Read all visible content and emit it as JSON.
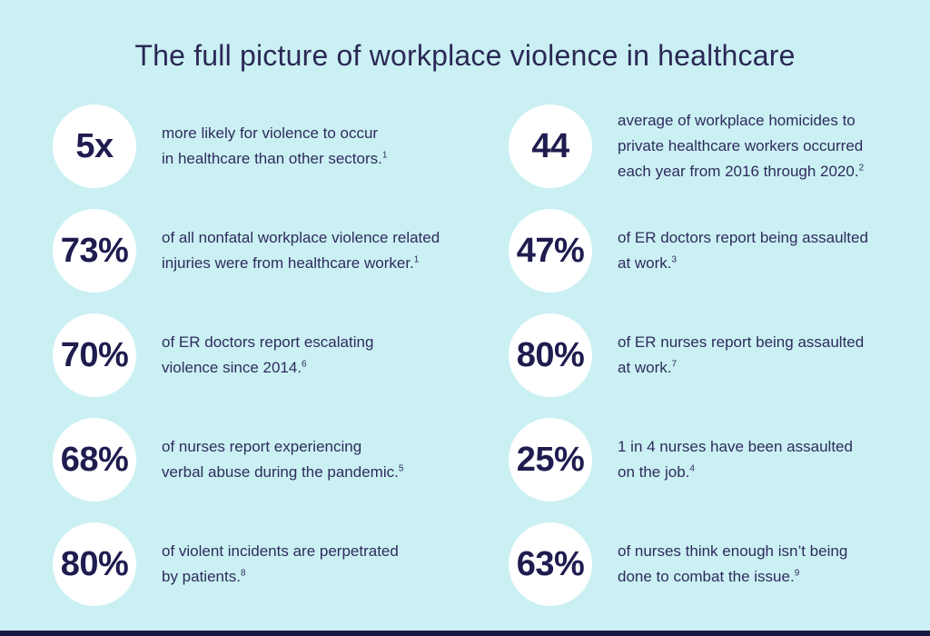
{
  "title": "The full picture of workplace violence in healthcare",
  "colors": {
    "background": "#cbf0f4",
    "circle": "#ffffff",
    "title_text": "#2b2955",
    "stat_text": "#1f1c4f",
    "body_text": "#2e2c5c",
    "footer_bar": "#191843"
  },
  "stats": [
    {
      "value": "5x",
      "lines": [
        "more likely for violence to occur",
        "in healthcare than other sectors."
      ],
      "footnote": "1"
    },
    {
      "value": "44",
      "lines": [
        "average of workplace homicides to",
        "private healthcare workers occurred",
        "each year from 2016 through 2020."
      ],
      "footnote": "2"
    },
    {
      "value": "73%",
      "lines": [
        "of all nonfatal workplace violence related",
        "injuries were from healthcare worker."
      ],
      "footnote": "1"
    },
    {
      "value": "47%",
      "lines": [
        "of ER doctors report being assaulted",
        "at work."
      ],
      "footnote": "3"
    },
    {
      "value": "70%",
      "lines": [
        "of ER doctors report escalating",
        "violence since 2014."
      ],
      "footnote": "6"
    },
    {
      "value": "80%",
      "lines": [
        "of ER nurses report being assaulted",
        "at work."
      ],
      "footnote": "7"
    },
    {
      "value": "68%",
      "lines": [
        "of nurses report experiencing",
        "verbal abuse during the pandemic."
      ],
      "footnote": "5"
    },
    {
      "value": "25%",
      "lines": [
        "1 in 4 nurses have been assaulted",
        "on the job."
      ],
      "footnote": "4"
    },
    {
      "value": "80%",
      "lines": [
        "of violent incidents are perpetrated",
        "by patients."
      ],
      "footnote": "8"
    },
    {
      "value": "63%",
      "lines": [
        "of nurses think enough isn’t being",
        "done to combat the issue."
      ],
      "footnote": "9"
    }
  ]
}
